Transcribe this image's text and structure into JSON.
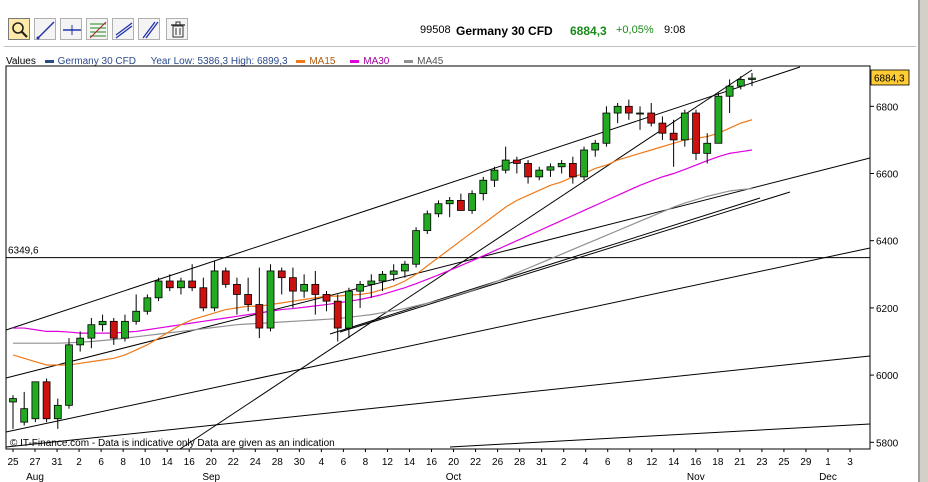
{
  "toolbar": {
    "tools": [
      {
        "icon": "magnifier-icon",
        "active": true
      },
      {
        "icon": "trendline-icon",
        "active": false
      },
      {
        "icon": "horizontal-line-icon",
        "active": false
      },
      {
        "icon": "fibonacci-icon",
        "active": false
      },
      {
        "icon": "channel-icon",
        "active": false
      },
      {
        "icon": "parallel-lines-icon",
        "active": false
      },
      {
        "icon": "trash-icon",
        "active": false
      }
    ],
    "quote": {
      "code": "99508",
      "name": "Germany 30 CFD",
      "price": "6884,3",
      "change": "+0,05%",
      "time": "9:08"
    }
  },
  "legend": {
    "values_label": "Values",
    "series_name": "Germany 30 CFD",
    "year_range": "Year Low: 5386,3 High: 6899,3",
    "ma15": "MA15",
    "ma30": "MA30",
    "ma45": "MA45"
  },
  "colors": {
    "up": "#22aa22",
    "down": "#cc1111",
    "ma15": "#ee7a1a",
    "ma30": "#e000e0",
    "ma45": "#909090",
    "price_tag": "#ffcc33"
  },
  "footer_note": "© IT-Finance.com - Data is indicative only Data are given as an indication",
  "hline_label": "6349,6",
  "chart_data": {
    "type": "candlestick",
    "ylim": [
      5780,
      6920
    ],
    "yticks": [
      5800,
      6000,
      6200,
      6400,
      6600,
      6800
    ],
    "price_tag": "6884,3",
    "hline": 6349.6,
    "xticks": [
      "25",
      "27",
      "31",
      "2",
      "6",
      "8",
      "10",
      "14",
      "16",
      "20",
      "22",
      "24",
      "28",
      "30",
      "4",
      "6",
      "8",
      "12",
      "14",
      "16",
      "20",
      "22",
      "26",
      "28",
      "31",
      "2",
      "4",
      "6",
      "8",
      "12",
      "14",
      "16",
      "18",
      "21",
      "23",
      "25",
      "29",
      "1",
      "3"
    ],
    "months": [
      {
        "label": "Aug",
        "at": 1
      },
      {
        "label": "Sep",
        "at": 9
      },
      {
        "label": "Oct",
        "at": 20
      },
      {
        "label": "Nov",
        "at": 31
      },
      {
        "label": "Dec",
        "at": 37
      }
    ],
    "candles": [
      {
        "o": 5920,
        "h": 5940,
        "l": 5840,
        "c": 5930
      },
      {
        "o": 5860,
        "h": 5950,
        "l": 5850,
        "c": 5900
      },
      {
        "o": 5870,
        "h": 5980,
        "l": 5860,
        "c": 5980
      },
      {
        "o": 5980,
        "h": 5990,
        "l": 5860,
        "c": 5870
      },
      {
        "o": 5870,
        "h": 5930,
        "l": 5840,
        "c": 5910
      },
      {
        "o": 5910,
        "h": 6110,
        "l": 5900,
        "c": 6090
      },
      {
        "o": 6090,
        "h": 6130,
        "l": 6070,
        "c": 6110
      },
      {
        "o": 6110,
        "h": 6170,
        "l": 6080,
        "c": 6150
      },
      {
        "o": 6150,
        "h": 6180,
        "l": 6130,
        "c": 6160
      },
      {
        "o": 6160,
        "h": 6170,
        "l": 6090,
        "c": 6110
      },
      {
        "o": 6110,
        "h": 6180,
        "l": 6100,
        "c": 6160
      },
      {
        "o": 6160,
        "h": 6240,
        "l": 6150,
        "c": 6190
      },
      {
        "o": 6190,
        "h": 6240,
        "l": 6180,
        "c": 6230
      },
      {
        "o": 6230,
        "h": 6290,
        "l": 6220,
        "c": 6280
      },
      {
        "o": 6280,
        "h": 6300,
        "l": 6250,
        "c": 6260
      },
      {
        "o": 6260,
        "h": 6290,
        "l": 6240,
        "c": 6280
      },
      {
        "o": 6280,
        "h": 6330,
        "l": 6250,
        "c": 6260
      },
      {
        "o": 6260,
        "h": 6290,
        "l": 6190,
        "c": 6200
      },
      {
        "o": 6200,
        "h": 6340,
        "l": 6190,
        "c": 6310
      },
      {
        "o": 6310,
        "h": 6320,
        "l": 6260,
        "c": 6270
      },
      {
        "o": 6270,
        "h": 6290,
        "l": 6180,
        "c": 6240
      },
      {
        "o": 6240,
        "h": 6290,
        "l": 6190,
        "c": 6210
      },
      {
        "o": 6210,
        "h": 6320,
        "l": 6110,
        "c": 6140
      },
      {
        "o": 6140,
        "h": 6330,
        "l": 6130,
        "c": 6310
      },
      {
        "o": 6310,
        "h": 6320,
        "l": 6240,
        "c": 6290
      },
      {
        "o": 6290,
        "h": 6320,
        "l": 6200,
        "c": 6250
      },
      {
        "o": 6250,
        "h": 6300,
        "l": 6230,
        "c": 6270
      },
      {
        "o": 6270,
        "h": 6310,
        "l": 6180,
        "c": 6240
      },
      {
        "o": 6240,
        "h": 6250,
        "l": 6190,
        "c": 6220
      },
      {
        "o": 6220,
        "h": 6240,
        "l": 6100,
        "c": 6140
      },
      {
        "o": 6140,
        "h": 6260,
        "l": 6110,
        "c": 6250
      },
      {
        "o": 6250,
        "h": 6280,
        "l": 6200,
        "c": 6270
      },
      {
        "o": 6270,
        "h": 6300,
        "l": 6230,
        "c": 6280
      },
      {
        "o": 6280,
        "h": 6310,
        "l": 6250,
        "c": 6300
      },
      {
        "o": 6300,
        "h": 6330,
        "l": 6280,
        "c": 6310
      },
      {
        "o": 6310,
        "h": 6340,
        "l": 6290,
        "c": 6330
      },
      {
        "o": 6330,
        "h": 6440,
        "l": 6320,
        "c": 6430
      },
      {
        "o": 6430,
        "h": 6490,
        "l": 6420,
        "c": 6480
      },
      {
        "o": 6480,
        "h": 6520,
        "l": 6470,
        "c": 6510
      },
      {
        "o": 6510,
        "h": 6530,
        "l": 6470,
        "c": 6520
      },
      {
        "o": 6520,
        "h": 6540,
        "l": 6490,
        "c": 6490
      },
      {
        "o": 6490,
        "h": 6550,
        "l": 6480,
        "c": 6540
      },
      {
        "o": 6540,
        "h": 6590,
        "l": 6520,
        "c": 6580
      },
      {
        "o": 6580,
        "h": 6620,
        "l": 6560,
        "c": 6610
      },
      {
        "o": 6610,
        "h": 6680,
        "l": 6600,
        "c": 6640
      },
      {
        "o": 6640,
        "h": 6650,
        "l": 6600,
        "c": 6630
      },
      {
        "o": 6630,
        "h": 6640,
        "l": 6570,
        "c": 6590
      },
      {
        "o": 6590,
        "h": 6620,
        "l": 6580,
        "c": 6610
      },
      {
        "o": 6610,
        "h": 6630,
        "l": 6590,
        "c": 6620
      },
      {
        "o": 6620,
        "h": 6640,
        "l": 6600,
        "c": 6630
      },
      {
        "o": 6630,
        "h": 6650,
        "l": 6570,
        "c": 6590
      },
      {
        "o": 6590,
        "h": 6680,
        "l": 6580,
        "c": 6670
      },
      {
        "o": 6670,
        "h": 6700,
        "l": 6650,
        "c": 6690
      },
      {
        "o": 6690,
        "h": 6800,
        "l": 6680,
        "c": 6780
      },
      {
        "o": 6780,
        "h": 6810,
        "l": 6750,
        "c": 6800
      },
      {
        "o": 6800,
        "h": 6820,
        "l": 6760,
        "c": 6780
      },
      {
        "o": 6780,
        "h": 6800,
        "l": 6730,
        "c": 6780
      },
      {
        "o": 6780,
        "h": 6810,
        "l": 6740,
        "c": 6750
      },
      {
        "o": 6750,
        "h": 6770,
        "l": 6700,
        "c": 6720
      },
      {
        "o": 6720,
        "h": 6760,
        "l": 6620,
        "c": 6700
      },
      {
        "o": 6700,
        "h": 6790,
        "l": 6680,
        "c": 6780
      },
      {
        "o": 6780,
        "h": 6790,
        "l": 6640,
        "c": 6660
      },
      {
        "o": 6660,
        "h": 6720,
        "l": 6630,
        "c": 6690
      },
      {
        "o": 6690,
        "h": 6840,
        "l": 6690,
        "c": 6830
      },
      {
        "o": 6830,
        "h": 6880,
        "l": 6780,
        "c": 6860
      },
      {
        "o": 6860,
        "h": 6890,
        "l": 6850,
        "c": 6880
      },
      {
        "o": 6880,
        "h": 6899,
        "l": 6860,
        "c": 6884
      }
    ],
    "ma15": [
      6060,
      6050,
      6040,
      6030,
      6030,
      6030,
      6035,
      6040,
      6045,
      6050,
      6060,
      6075,
      6090,
      6110,
      6130,
      6150,
      6165,
      6175,
      6185,
      6195,
      6200,
      6205,
      6205,
      6210,
      6215,
      6220,
      6225,
      6230,
      6235,
      6235,
      6238,
      6240,
      6245,
      6255,
      6265,
      6280,
      6300,
      6325,
      6350,
      6375,
      6400,
      6425,
      6450,
      6475,
      6500,
      6520,
      6535,
      6550,
      6565,
      6575,
      6590,
      6600,
      6615,
      6625,
      6640,
      6650,
      6660,
      6670,
      6680,
      6690,
      6700,
      6705,
      6710,
      6720,
      6735,
      6750,
      6760
    ],
    "ma30": [
      6140,
      6140,
      6135,
      6130,
      6130,
      6128,
      6125,
      6125,
      6125,
      6125,
      6128,
      6130,
      6135,
      6140,
      6145,
      6150,
      6155,
      6160,
      6165,
      6170,
      6175,
      6180,
      6185,
      6190,
      6195,
      6198,
      6202,
      6206,
      6210,
      6215,
      6220,
      6225,
      6232,
      6240,
      6250,
      6260,
      6272,
      6285,
      6298,
      6312,
      6326,
      6340,
      6355,
      6370,
      6385,
      6400,
      6415,
      6430,
      6445,
      6460,
      6475,
      6490,
      6505,
      6520,
      6535,
      6550,
      6565,
      6578,
      6590,
      6600,
      6612,
      6625,
      6638,
      6650,
      6660,
      6665,
      6670
    ],
    "ma45": [
      6095,
      6095,
      6095,
      6095,
      6095,
      6096,
      6098,
      6100,
      6103,
      6106,
      6110,
      6114,
      6118,
      6122,
      6126,
      6130,
      6134,
      6138,
      6142,
      6146,
      6150,
      6152,
      6154,
      6156,
      6158,
      6160,
      6162,
      6164,
      6166,
      6168,
      6172,
      6176,
      6180,
      6186,
      6192,
      6198,
      6206,
      6214,
      6222,
      6232,
      6242,
      6252,
      6264,
      6276,
      6290,
      6304,
      6318,
      6332,
      6346,
      6360,
      6374,
      6388,
      6402,
      6416,
      6430,
      6444,
      6458,
      6472,
      6486,
      6500,
      6512,
      6522,
      6532,
      6540,
      6548,
      6552,
      6555
    ]
  }
}
